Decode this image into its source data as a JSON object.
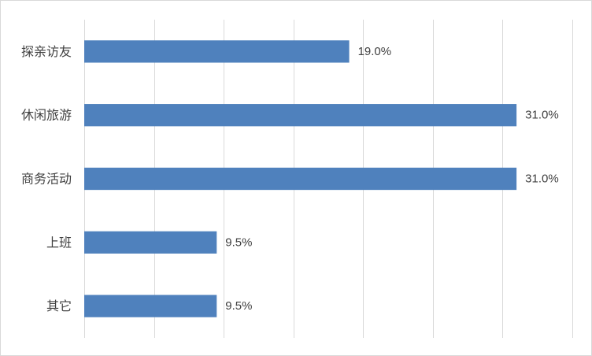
{
  "chart_data": {
    "type": "bar",
    "orientation": "horizontal",
    "categories": [
      "探亲访友",
      "休闲旅游",
      "商务活动",
      "上班",
      "其它"
    ],
    "values": [
      19.0,
      31.0,
      31.0,
      9.5,
      9.5
    ],
    "value_labels": [
      "19.0%",
      "31.0%",
      "31.0%",
      "9.5%",
      "9.5%"
    ],
    "xlim": [
      0,
      35
    ],
    "grid": "vertical",
    "legend": "none",
    "colors": {
      "bar": "#4f81bd",
      "grid": "#d9d9d9",
      "text": "#404040"
    }
  }
}
